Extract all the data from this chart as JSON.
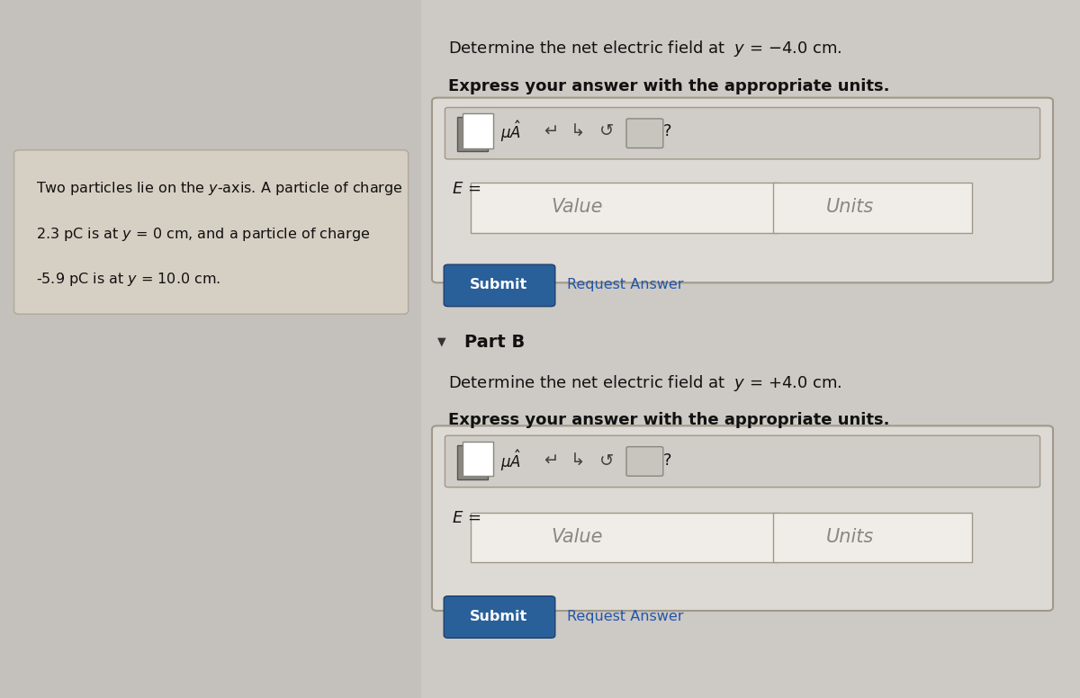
{
  "bg_color": "#c4c0bc",
  "left_panel_bg": "#d6cfc3",
  "left_panel_border": "#b0a898",
  "right_bg": "#cdc9c4",
  "part_a_title": "Determine the net electric field at  $y$ = −4.0 cm.",
  "part_a_subtitle": "Express your answer with the appropriate units.",
  "part_b_label": "Part B",
  "part_b_title": "Determine the net electric field at  $y$ = +4.0 cm.",
  "part_b_subtitle": "Express your answer with the appropriate units.",
  "input_box_bg": "#ddd9d4",
  "input_box_border": "#a09888",
  "value_bg": "#f0ede8",
  "value_placeholder": "Value",
  "units_placeholder": "Units",
  "e_label": "$E$ =",
  "submit_color": "#2a6099",
  "submit_border": "#1a4070",
  "submit_text": "Submit",
  "request_answer_text": "Request Answer",
  "request_answer_color": "#2255aa",
  "toolbar_bg": "#d0ccc7",
  "toolbar_border": "#a09888",
  "question_mark": "?",
  "triangle_marker": "▼",
  "left_text_lines": [
    "Two particles lie on the $y$-axis. A particle of charge",
    "2.3 pC is at $y$ = 0 cm, and a particle of charge",
    "-5.9 pC is at $y$ = 10.0 cm."
  ]
}
